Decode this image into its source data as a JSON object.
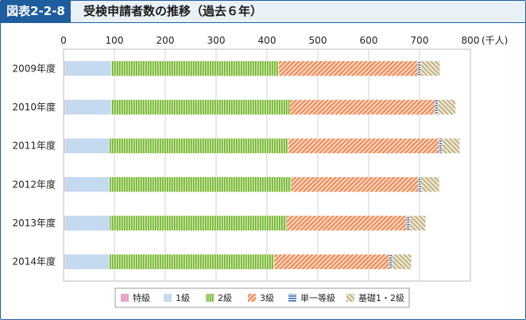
{
  "header": {
    "badge": "図表2-2-8",
    "title": "受検申請者数の推移（過去６年）"
  },
  "colors": {
    "frame": "#1f5e9e",
    "header_bg": "#e9f1f8"
  },
  "chart_data": {
    "type": "bar",
    "orientation": "horizontal",
    "stacked": true,
    "title": "",
    "xlabel": "",
    "ylabel": "",
    "unit_label": "(千人)",
    "xlim": [
      0,
      800
    ],
    "x_ticks": [
      "0",
      "100",
      "200",
      "300",
      "400",
      "500",
      "600",
      "700",
      "800"
    ],
    "categories": [
      "2009年度",
      "2010年度",
      "2011年度",
      "2012年度",
      "2013年度",
      "2014年度"
    ],
    "series": [
      {
        "name": "特級",
        "color": "#e8a6c8",
        "pattern": "solid",
        "values": [
          3,
          3,
          3,
          3,
          3,
          3
        ]
      },
      {
        "name": "1級",
        "color": "#c5d9ef",
        "pattern": "solid",
        "values": [
          91,
          91,
          87,
          87,
          88,
          87
        ]
      },
      {
        "name": "2級",
        "color": "#8cc63f",
        "pattern": "vertical",
        "values": [
          329,
          351,
          352,
          358,
          348,
          324
        ]
      },
      {
        "name": "3級",
        "color": "#f08a54",
        "pattern": "diagonal",
        "values": [
          274,
          286,
          297,
          250,
          236,
          227
        ]
      },
      {
        "name": "単一等級",
        "color": "#3a78c4",
        "pattern": "horizontal",
        "values": [
          5,
          5,
          5,
          5,
          5,
          5
        ]
      },
      {
        "name": "基礎1・2級",
        "color": "#c7b98c",
        "pattern": "diagonal-rev",
        "values": [
          38,
          35,
          35,
          36,
          32,
          38
        ]
      }
    ],
    "legend_position": "bottom",
    "grid": true
  }
}
